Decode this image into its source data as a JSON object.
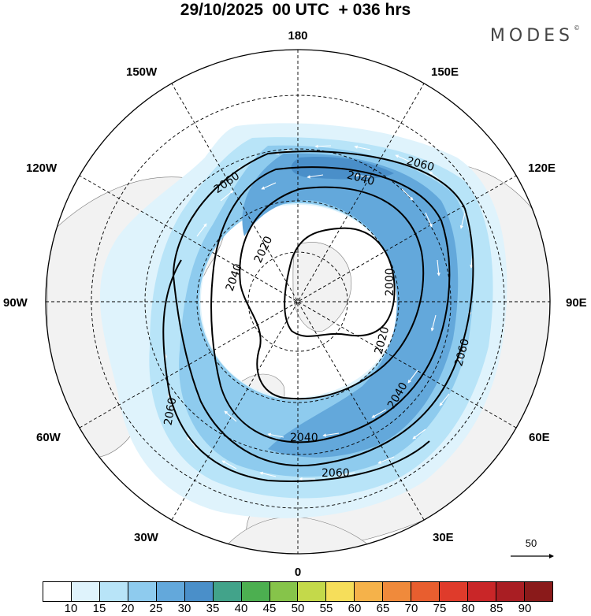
{
  "title": "29/10/2025  00 UTC  + 036 hrs",
  "brand": "MODES",
  "brand_mark": "©",
  "longitude_labels": {
    "top": "180",
    "bottom": "0",
    "left": "90W",
    "right": "90E",
    "upper_left_outer": "150W",
    "upper_right_outer": "150E",
    "upper_left": "120W",
    "upper_right": "120E",
    "lower_left": "60W",
    "lower_right": "60E",
    "lower_left_outer": "30W",
    "lower_right_outer": "30E"
  },
  "contour_labels": {
    "c2000": "2000",
    "c2020a": "2020",
    "c2020b": "2020",
    "c2040a": "2040",
    "c2040b": "2040",
    "c2040c": "2040",
    "c2040d": "2040",
    "c2060a": "2060",
    "c2060b": "2060",
    "c2060c": "2060",
    "c2060d": "2060",
    "c2060e": "2060"
  },
  "reference_vector": "50",
  "colorbar": {
    "colors": [
      "#ffffff",
      "#dff3fc",
      "#b8e4f8",
      "#8ecbee",
      "#63a8db",
      "#4a8fc9",
      "#42a38a",
      "#4caf50",
      "#86c44a",
      "#c4d94a",
      "#f6de5a",
      "#f5b24a",
      "#f08a3b",
      "#e85e2f",
      "#df3b2b",
      "#c92628",
      "#a91e23",
      "#8a1a1a"
    ],
    "ticks": [
      "10",
      "15",
      "20",
      "25",
      "30",
      "35",
      "40",
      "45",
      "50",
      "55",
      "60",
      "65",
      "70",
      "75",
      "80",
      "85",
      "90"
    ]
  }
}
